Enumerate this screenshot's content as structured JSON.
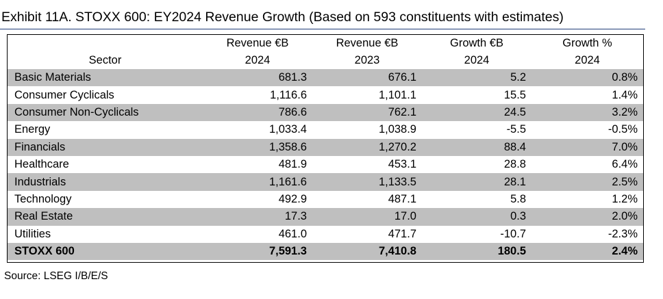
{
  "title": "Exhibit 11A.  STOXX 600: EY2024 Revenue Growth (Based on 593 constituents with estimates)",
  "header": {
    "row1": [
      "",
      "Revenue €B",
      "Revenue €B",
      "Growth €B",
      "Growth %"
    ],
    "row2": [
      "Sector",
      "2024",
      "2023",
      "2024",
      "2024"
    ]
  },
  "rows": [
    {
      "sector": "Basic Materials",
      "rev2024": "681.3",
      "rev2023": "676.1",
      "growth_eb": "5.2",
      "growth_pct": "0.8%"
    },
    {
      "sector": "Consumer Cyclicals",
      "rev2024": "1,116.6",
      "rev2023": "1,101.1",
      "growth_eb": "15.5",
      "growth_pct": "1.4%"
    },
    {
      "sector": "Consumer Non-Cyclicals",
      "rev2024": "786.6",
      "rev2023": "762.1",
      "growth_eb": "24.5",
      "growth_pct": "3.2%"
    },
    {
      "sector": "Energy",
      "rev2024": "1,033.4",
      "rev2023": "1,038.9",
      "growth_eb": "-5.5",
      "growth_pct": "-0.5%"
    },
    {
      "sector": "Financials",
      "rev2024": "1,358.6",
      "rev2023": "1,270.2",
      "growth_eb": "88.4",
      "growth_pct": "7.0%"
    },
    {
      "sector": "Healthcare",
      "rev2024": "481.9",
      "rev2023": "453.1",
      "growth_eb": "28.8",
      "growth_pct": "6.4%"
    },
    {
      "sector": "Industrials",
      "rev2024": "1,161.6",
      "rev2023": "1,133.5",
      "growth_eb": "28.1",
      "growth_pct": "2.5%"
    },
    {
      "sector": "Technology",
      "rev2024": "492.9",
      "rev2023": "487.1",
      "growth_eb": "5.8",
      "growth_pct": "1.2%"
    },
    {
      "sector": "Real Estate",
      "rev2024": "17.3",
      "rev2023": "17.0",
      "growth_eb": "0.3",
      "growth_pct": "2.0%"
    },
    {
      "sector": "Utilities",
      "rev2024": "461.0",
      "rev2023": "471.7",
      "growth_eb": "-10.7",
      "growth_pct": "-2.3%"
    }
  ],
  "total": {
    "sector": "STOXX 600",
    "rev2024": "7,591.3",
    "rev2023": "7,410.8",
    "growth_eb": "180.5",
    "growth_pct": "2.4%"
  },
  "source": "Source: LSEG I/B/E/S",
  "colors": {
    "shade": "#bfbfbf",
    "rule": "#1f3b78"
  }
}
